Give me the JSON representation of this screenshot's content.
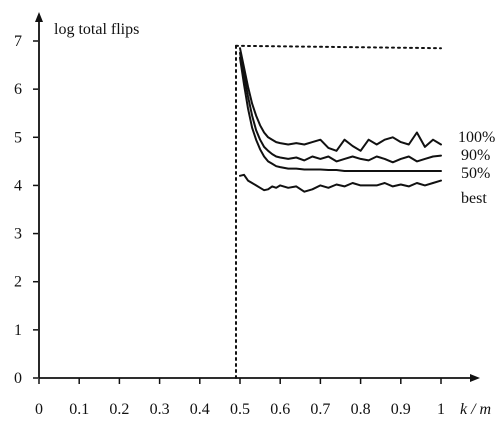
{
  "chart_data": {
    "type": "line",
    "ylabel": "log total flips",
    "xlabel": "k / m",
    "xlim": [
      0,
      1
    ],
    "ylim": [
      0,
      7
    ],
    "x_ticks": [
      "0",
      "0.1",
      "0.2",
      "0.3",
      "0.4",
      "0.5",
      "0.6",
      "0.7",
      "0.8",
      "0.9",
      "1"
    ],
    "y_ticks": [
      "0",
      "1",
      "2",
      "3",
      "4",
      "5",
      "6",
      "7"
    ],
    "grid": false,
    "legend": "inline labels at right end of each line",
    "reference_lines": [
      {
        "style": "dotted",
        "points": [
          [
            0.49,
            0
          ],
          [
            0.49,
            6.9
          ]
        ]
      },
      {
        "style": "dotted",
        "points": [
          [
            0.49,
            6.9
          ],
          [
            1.0,
            6.85
          ]
        ]
      }
    ],
    "series": [
      {
        "name": "100%",
        "x": [
          0.5,
          0.51,
          0.52,
          0.53,
          0.54,
          0.55,
          0.56,
          0.57,
          0.58,
          0.59,
          0.6,
          0.62,
          0.64,
          0.66,
          0.68,
          0.7,
          0.72,
          0.74,
          0.76,
          0.78,
          0.8,
          0.82,
          0.84,
          0.86,
          0.88,
          0.9,
          0.92,
          0.94,
          0.96,
          0.98,
          1.0
        ],
        "values": [
          6.85,
          6.45,
          6.05,
          5.7,
          5.45,
          5.25,
          5.1,
          5.0,
          4.95,
          4.9,
          4.88,
          4.85,
          4.88,
          4.85,
          4.9,
          4.95,
          4.78,
          4.72,
          4.95,
          4.82,
          4.72,
          4.95,
          4.85,
          4.95,
          5.0,
          4.9,
          4.85,
          5.1,
          4.8,
          4.95,
          4.85
        ]
      },
      {
        "name": "90%",
        "x": [
          0.5,
          0.51,
          0.52,
          0.53,
          0.54,
          0.55,
          0.56,
          0.57,
          0.58,
          0.59,
          0.6,
          0.62,
          0.64,
          0.66,
          0.68,
          0.7,
          0.72,
          0.74,
          0.76,
          0.78,
          0.8,
          0.82,
          0.84,
          0.86,
          0.88,
          0.9,
          0.92,
          0.94,
          0.96,
          0.98,
          1.0
        ],
        "values": [
          6.75,
          6.3,
          5.85,
          5.45,
          5.15,
          4.95,
          4.8,
          4.72,
          4.65,
          4.6,
          4.58,
          4.55,
          4.58,
          4.52,
          4.6,
          4.55,
          4.6,
          4.5,
          4.55,
          4.6,
          4.55,
          4.52,
          4.6,
          4.55,
          4.48,
          4.55,
          4.6,
          4.5,
          4.55,
          4.6,
          4.62
        ]
      },
      {
        "name": "50%",
        "x": [
          0.5,
          0.51,
          0.52,
          0.53,
          0.54,
          0.55,
          0.56,
          0.57,
          0.58,
          0.59,
          0.6,
          0.62,
          0.64,
          0.66,
          0.68,
          0.7,
          0.72,
          0.74,
          0.76,
          0.78,
          0.8,
          0.82,
          0.84,
          0.86,
          0.88,
          0.9,
          0.92,
          0.94,
          0.96,
          0.98,
          1.0
        ],
        "values": [
          6.65,
          6.1,
          5.6,
          5.2,
          4.95,
          4.75,
          4.6,
          4.5,
          4.45,
          4.4,
          4.38,
          4.35,
          4.35,
          4.33,
          4.33,
          4.33,
          4.32,
          4.32,
          4.3,
          4.3,
          4.3,
          4.3,
          4.3,
          4.3,
          4.3,
          4.3,
          4.3,
          4.3,
          4.3,
          4.3,
          4.3
        ]
      },
      {
        "name": "best",
        "x": [
          0.5,
          0.51,
          0.52,
          0.53,
          0.54,
          0.55,
          0.56,
          0.57,
          0.58,
          0.59,
          0.6,
          0.62,
          0.64,
          0.66,
          0.68,
          0.7,
          0.72,
          0.74,
          0.76,
          0.78,
          0.8,
          0.82,
          0.84,
          0.86,
          0.88,
          0.9,
          0.92,
          0.94,
          0.96,
          0.98,
          1.0
        ],
        "values": [
          4.2,
          4.22,
          4.1,
          4.05,
          4.0,
          3.95,
          3.9,
          3.92,
          3.98,
          3.95,
          4.0,
          3.95,
          3.98,
          3.87,
          3.92,
          4.0,
          3.95,
          4.02,
          3.98,
          4.05,
          4.0,
          4.0,
          4.0,
          4.05,
          3.98,
          4.02,
          3.98,
          4.05,
          4.0,
          4.05,
          4.1
        ]
      }
    ]
  }
}
